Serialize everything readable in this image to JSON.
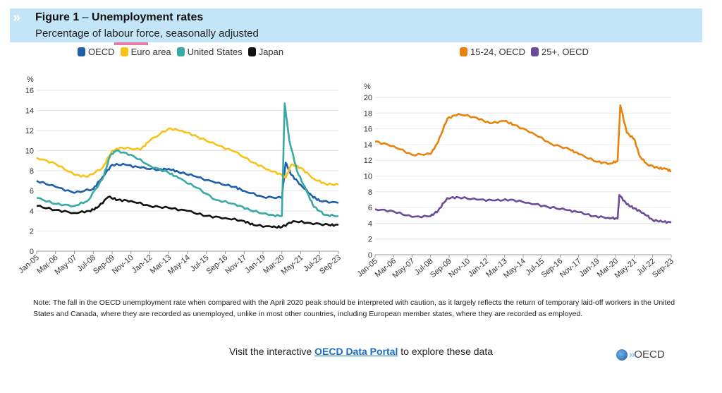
{
  "header": {
    "figure_label": "Figure 1",
    "dash": " – ",
    "title": "Unemployment rates",
    "subtitle": "Percentage of labour force, seasonally adjusted"
  },
  "colors": {
    "oecd": "#1f5fa8",
    "euro_area": "#f7c31a",
    "united_states": "#3aa9a4",
    "japan": "#111111",
    "age_15_24": "#e8820e",
    "age_25_plus": "#6b4c9a"
  },
  "chart_data": [
    {
      "type": "line",
      "yunit": "%",
      "ylim": [
        0,
        16
      ],
      "yticks": [
        "0",
        "2",
        "4",
        "6",
        "8",
        "10",
        "12",
        "14",
        "16"
      ],
      "xticks": [
        "Jan-05",
        "Mar-06",
        "May-07",
        "Jul-08",
        "Sep-09",
        "Nov-10",
        "Jan-12",
        "Mar-13",
        "May-14",
        "Jul-15",
        "Sep-16",
        "Nov-17",
        "Jan-19",
        "Mar-20",
        "May-21",
        "Jul-22",
        "Sep-23"
      ],
      "legend_position": "top",
      "series": [
        {
          "name": "OECD",
          "color": "#1f5fa8",
          "points": [
            [
              0,
              7.0
            ],
            [
              1,
              6.4
            ],
            [
              2,
              5.8
            ],
            [
              3,
              6.2
            ],
            [
              3.5,
              7.4
            ],
            [
              4,
              8.6
            ],
            [
              4.7,
              8.6
            ],
            [
              5.5,
              8.3
            ],
            [
              6.5,
              8.1
            ],
            [
              7,
              8.2
            ],
            [
              7.5,
              7.9
            ],
            [
              8.3,
              7.5
            ],
            [
              9.5,
              6.8
            ],
            [
              10.5,
              6.4
            ],
            [
              11,
              6.0
            ],
            [
              12,
              5.4
            ],
            [
              13,
              5.3
            ],
            [
              13.2,
              8.8
            ],
            [
              13.5,
              7.6
            ],
            [
              14,
              6.6
            ],
            [
              14.6,
              5.5
            ],
            [
              15,
              5.0
            ],
            [
              16,
              4.8
            ]
          ]
        },
        {
          "name": "Euro area",
          "color": "#f7c31a",
          "points": [
            [
              0,
              9.3
            ],
            [
              1,
              8.7
            ],
            [
              2,
              7.6
            ],
            [
              2.7,
              7.4
            ],
            [
              3.5,
              8.3
            ],
            [
              4,
              10.0
            ],
            [
              4.5,
              10.3
            ],
            [
              5.5,
              10.1
            ],
            [
              6,
              11.0
            ],
            [
              7,
              12.2
            ],
            [
              7.7,
              12.0
            ],
            [
              8.5,
              11.4
            ],
            [
              9.5,
              10.6
            ],
            [
              10.5,
              9.9
            ],
            [
              11.5,
              8.8
            ],
            [
              12.3,
              8.1
            ],
            [
              13,
              7.6
            ],
            [
              13.2,
              7.3
            ],
            [
              13.5,
              8.6
            ],
            [
              14,
              8.3
            ],
            [
              14.7,
              7.2
            ],
            [
              15.3,
              6.7
            ],
            [
              16,
              6.6
            ]
          ]
        },
        {
          "name": "United States",
          "color": "#3aa9a4",
          "points": [
            [
              0,
              5.3
            ],
            [
              1,
              4.7
            ],
            [
              2,
              4.5
            ],
            [
              2.7,
              5.0
            ],
            [
              3.5,
              7.2
            ],
            [
              3.9,
              9.5
            ],
            [
              4.2,
              10.0
            ],
            [
              5,
              9.6
            ],
            [
              6,
              8.5
            ],
            [
              7,
              7.8
            ],
            [
              7.5,
              7.3
            ],
            [
              8.5,
              6.3
            ],
            [
              9.5,
              5.1
            ],
            [
              10.5,
              4.7
            ],
            [
              11.3,
              4.1
            ],
            [
              12.3,
              3.6
            ],
            [
              13,
              3.5
            ],
            [
              13.15,
              14.7
            ],
            [
              13.4,
              11.0
            ],
            [
              13.8,
              8.0
            ],
            [
              14.3,
              6.0
            ],
            [
              14.7,
              4.4
            ],
            [
              15.3,
              3.6
            ],
            [
              16,
              3.5
            ]
          ]
        },
        {
          "name": "Japan",
          "color": "#111111",
          "points": [
            [
              0,
              4.5
            ],
            [
              1,
              4.1
            ],
            [
              2,
              3.8
            ],
            [
              2.8,
              4.0
            ],
            [
              3.2,
              4.3
            ],
            [
              3.8,
              5.4
            ],
            [
              4.3,
              5.1
            ],
            [
              5,
              5.0
            ],
            [
              6,
              4.5
            ],
            [
              7,
              4.3
            ],
            [
              8,
              4.0
            ],
            [
              9,
              3.5
            ],
            [
              10,
              3.3
            ],
            [
              11,
              3.0
            ],
            [
              11.5,
              2.6
            ],
            [
              12.5,
              2.4
            ],
            [
              13,
              2.4
            ],
            [
              13.6,
              3.0
            ],
            [
              14.5,
              2.8
            ],
            [
              15.5,
              2.6
            ],
            [
              16,
              2.6
            ]
          ]
        }
      ]
    },
    {
      "type": "line",
      "yunit": "%",
      "ylim": [
        0,
        20
      ],
      "yticks": [
        "0",
        "2",
        "4",
        "6",
        "8",
        "10",
        "12",
        "14",
        "16",
        "18",
        "20"
      ],
      "xticks": [
        "Jan-05",
        "Mar-06",
        "May-07",
        "Jul-08",
        "Sep-09",
        "Nov-10",
        "Jan-12",
        "Mar-13",
        "May-14",
        "Jul-15",
        "Sep-16",
        "Nov-17",
        "Jan-19",
        "Mar-20",
        "May-21",
        "Jul-22",
        "Sep-23"
      ],
      "legend_position": "top",
      "series": [
        {
          "name": "15-24, OECD",
          "color": "#e8820e",
          "points": [
            [
              0,
              14.4
            ],
            [
              1,
              13.8
            ],
            [
              2,
              12.7
            ],
            [
              3,
              12.8
            ],
            [
              3.4,
              14.3
            ],
            [
              3.9,
              17.3
            ],
            [
              4.5,
              17.9
            ],
            [
              5.5,
              17.4
            ],
            [
              6.2,
              16.7
            ],
            [
              7,
              17.0
            ],
            [
              7.5,
              16.5
            ],
            [
              8.5,
              15.5
            ],
            [
              9.5,
              14.1
            ],
            [
              10.5,
              13.4
            ],
            [
              11,
              12.8
            ],
            [
              12,
              11.8
            ],
            [
              12.7,
              11.6
            ],
            [
              13.1,
              11.9
            ],
            [
              13.25,
              19.0
            ],
            [
              13.6,
              15.5
            ],
            [
              14,
              14.7
            ],
            [
              14.3,
              12.5
            ],
            [
              14.7,
              11.5
            ],
            [
              15.3,
              11.0
            ],
            [
              15.7,
              10.9
            ],
            [
              16,
              10.6
            ]
          ]
        },
        {
          "name": "25+, OECD",
          "color": "#6b4c9a",
          "points": [
            [
              0,
              5.8
            ],
            [
              1,
              5.5
            ],
            [
              2,
              4.8
            ],
            [
              3,
              4.9
            ],
            [
              3.4,
              5.6
            ],
            [
              3.9,
              7.2
            ],
            [
              4.5,
              7.3
            ],
            [
              5.5,
              7.0
            ],
            [
              6.5,
              6.9
            ],
            [
              7.3,
              7.0
            ],
            [
              8.3,
              6.6
            ],
            [
              9.3,
              6.1
            ],
            [
              10.3,
              5.7
            ],
            [
              11,
              5.4
            ],
            [
              11.8,
              4.9
            ],
            [
              12.6,
              4.7
            ],
            [
              13.1,
              4.6
            ],
            [
              13.2,
              7.6
            ],
            [
              13.6,
              6.4
            ],
            [
              14,
              5.9
            ],
            [
              14.5,
              5.3
            ],
            [
              15,
              4.4
            ],
            [
              15.5,
              4.2
            ],
            [
              16,
              4.1
            ]
          ]
        }
      ]
    }
  ],
  "note": "Note: The fall in the OECD unemployment rate when compared with the April 2020 peak should be interpreted with caution, as it largely reflects the return of temporary laid-off workers in the United States and Canada, where they are recorded as unemployed, unlike in most other countries, including European member states, where they are recorded as employed.",
  "footer": {
    "visit_prefix": "Visit the interactive ",
    "link_text": "OECD Data Portal",
    "visit_suffix": " to explore these data",
    "logo_text": "OECD",
    "logo_icon": "oecd-globe-icon"
  }
}
